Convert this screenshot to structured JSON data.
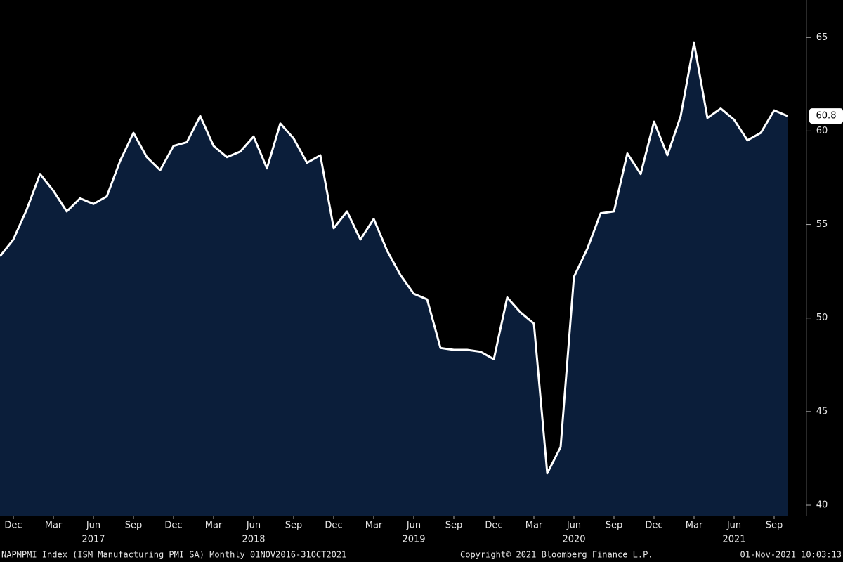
{
  "chart_data": {
    "type": "area",
    "categories": [
      null,
      "Dec",
      null,
      null,
      "Mar",
      null,
      null,
      "Jun",
      null,
      null,
      "Sep",
      null,
      null,
      "Dec",
      null,
      null,
      "Mar",
      null,
      null,
      "Jun",
      null,
      null,
      "Sep",
      null,
      null,
      "Dec",
      null,
      null,
      "Mar",
      null,
      null,
      "Jun",
      null,
      null,
      "Sep",
      null,
      null,
      "Dec",
      null,
      null,
      "Mar",
      null,
      null,
      "Jun",
      null,
      null,
      "Sep",
      null,
      null,
      "Dec",
      null,
      null,
      "Mar",
      null,
      null,
      "Jun",
      null,
      null,
      "Sep",
      null
    ],
    "years": [
      "2017",
      "2018",
      "2019",
      "2020",
      "2021"
    ],
    "values": [
      53.3,
      54.2,
      55.8,
      57.7,
      56.8,
      55.7,
      56.4,
      56.1,
      56.5,
      58.4,
      59.9,
      58.6,
      57.9,
      59.2,
      59.4,
      60.8,
      59.2,
      58.6,
      58.9,
      59.7,
      58.0,
      60.4,
      59.6,
      58.3,
      58.7,
      54.8,
      55.7,
      54.2,
      55.3,
      53.6,
      52.3,
      51.3,
      51.0,
      48.4,
      48.3,
      48.3,
      48.2,
      47.8,
      51.1,
      50.3,
      49.7,
      41.7,
      43.1,
      52.2,
      53.7,
      55.6,
      55.7,
      58.8,
      57.7,
      60.5,
      58.7,
      60.8,
      64.7,
      60.7,
      61.2,
      60.6,
      59.5,
      59.9,
      61.1,
      60.8
    ],
    "color": "#ffffff",
    "fill": "#0b1e3a",
    "ylim": [
      39.4,
      67
    ],
    "yticks": [
      40,
      45,
      50,
      55,
      60,
      65
    ],
    "grid": false,
    "footer": {
      "description": "NAPMPMI Index (ISM Manufacturing PMI SA)  Monthly 01NOV2016-31OCT2021",
      "copyright": "Copyright© 2021 Bloomberg Finance L.P.",
      "timestamp": "01-Nov-2021 10:03:13"
    }
  }
}
